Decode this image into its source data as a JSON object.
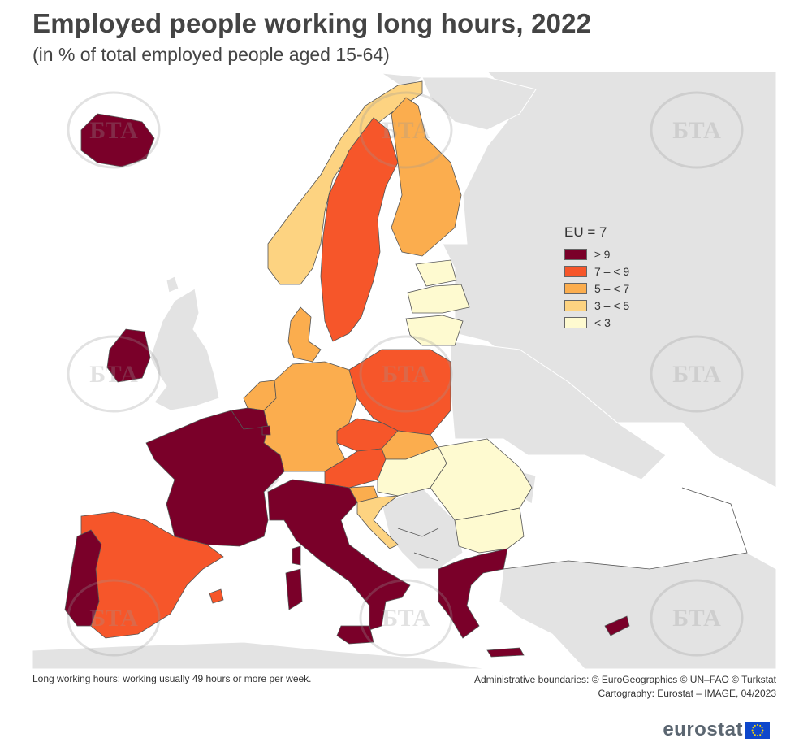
{
  "title": "Employed people working long hours, 2022",
  "subtitle": "(in % of total employed people aged 15-64)",
  "legend": {
    "title": "EU = 7",
    "items": [
      {
        "label": "≥ 9",
        "color": "#7a0029"
      },
      {
        "label": "7 – < 9",
        "color": "#f6562a"
      },
      {
        "label": "5 – < 7",
        "color": "#fbad4e"
      },
      {
        "label": "3 – < 5",
        "color": "#fdd381"
      },
      {
        "label": "< 3",
        "color": "#fefad0"
      }
    ]
  },
  "colors": {
    "sea": "#ffffff",
    "non_eu_land": "#e3e3e3",
    "border": "#555555",
    "watermark": "#c9c9c9"
  },
  "footnote": "Long working hours: working usually 49 hours or more per week.",
  "credits": {
    "line1": "Administrative boundaries: © EuroGeographics © UN–FAO © Turkstat",
    "line2": "Cartography: Eurostat – IMAGE, 04/2023"
  },
  "brand": "eurostat",
  "watermark_text": "БТА"
}
